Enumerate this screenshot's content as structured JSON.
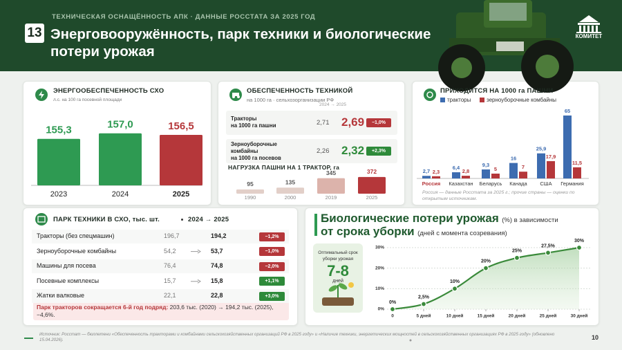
{
  "header": {
    "kicker": "ТЕХНИЧЕСКАЯ ОСНАЩЁННОСТЬ АПК · ДАННЫЕ РОССТАТА ЗА 2025 ГОД",
    "number": "13",
    "title": "Энерговооружённость, парк техники и биологические потери урожая",
    "logo": "КОМИТЕТ"
  },
  "chart_data": [
    {
      "type": "bar",
      "title": "ЭНЕРГООБЕСПЕЧЕННОСТЬ СХО",
      "subtitle": "л.с. на 100 га посевной площади",
      "categories": [
        "2023",
        "2024",
        "2025"
      ],
      "values": [
        155.3,
        157.0,
        156.5
      ],
      "value_labels": [
        "155,3",
        "157,0",
        "156,5"
      ],
      "colors": [
        "#2e9a52",
        "#2e9a52",
        "#b5373a"
      ],
      "ylim": [
        141,
        158
      ]
    },
    {
      "type": "bar",
      "title": "НАГРУЗКА ПАШНИ НА 1 ТРАКТОР, га",
      "categories": [
        "1990",
        "2000",
        "2019",
        "2025"
      ],
      "values": [
        95,
        135,
        345,
        372
      ],
      "colors": [
        "#e2cfc8",
        "#e2cfc8",
        "#dcb3ab",
        "#b5373a"
      ],
      "ylim": [
        0,
        400
      ]
    },
    {
      "type": "grouped_bar",
      "title": "ПРИХОДИТСЯ НА 1000 га ПАШНИ",
      "categories": [
        "Россия",
        "Казахстан",
        "Беларусь",
        "Канада",
        "США",
        "Германия"
      ],
      "series": [
        {
          "name": "тракторы",
          "color": "#3d6cb0",
          "values": [
            2.7,
            6.4,
            9.3,
            16,
            25.9,
            65
          ],
          "value_labels": [
            "2,7",
            "6,4",
            "9,3",
            "16",
            "25,9",
            "65"
          ]
        },
        {
          "name": "зерноуборочные комбайны",
          "color": "#b5373a",
          "values": [
            2.3,
            2.8,
            5,
            7,
            17.9,
            11.5
          ],
          "value_labels": [
            "2,3",
            "2,8",
            "5",
            "7",
            "17,9",
            "11,5"
          ]
        }
      ],
      "ylim": [
        0,
        65
      ],
      "note": "Россия — данные Росстата за 2025 г.; прочие страны — оценки по открытым источникам."
    },
    {
      "type": "line",
      "title": "Биологические потери урожая",
      "title_unit": "(%) в зависимости",
      "title_line2": "от срока уборки",
      "title_line2_unit": "(дней с момента созревания)",
      "x": [
        0,
        5,
        10,
        15,
        20,
        25,
        30
      ],
      "values": [
        0,
        2.5,
        10,
        20,
        25,
        27.5,
        30
      ],
      "value_labels": [
        "0%",
        "2,5%",
        "10%",
        "20%",
        "25%",
        "27,5%",
        "30%"
      ],
      "xlim": [
        0,
        30
      ],
      "xticks": [
        0,
        {
          "value": 5,
          "label": "5 дней"
        },
        {
          "value": 10,
          "label": "10 дней"
        },
        {
          "value": 15,
          "label": "15 дней"
        },
        {
          "value": 20,
          "label": "20 дней"
        },
        {
          "value": 25,
          "label": "25 дней"
        },
        {
          "value": 30,
          "label": "30 дней"
        }
      ],
      "ylim": [
        0,
        30
      ],
      "yticks": [
        {
          "value": 0,
          "label": "0%"
        },
        {
          "value": 10,
          "label": "10%"
        },
        {
          "value": 20,
          "label": "20%"
        },
        {
          "value": 30,
          "label": "30%"
        }
      ],
      "color": "#3a8a3a",
      "grid": true
    }
  ],
  "equipment": {
    "title": "ОБЕСПЕЧЕННОСТЬ ТЕХНИКОЙ",
    "subtitle": "на 1000 га · сельхозорганизации РФ",
    "period": "2024 → 2025",
    "rows": [
      {
        "label": "Тракторы\nна 1000 га пашни",
        "old": "2,71",
        "new": "2,69",
        "change": "−1,0%"
      },
      {
        "label": "Зерноуборочные\nкомбайны\nна 1000 га посевов",
        "old": "2,26",
        "new": "2,32",
        "change": "+2,3%"
      }
    ]
  },
  "fleet": {
    "title": "ПАРК ТЕХНИКИ В СХО, тыс. шт.",
    "period": "2024 → 2025",
    "rows": [
      [
        "Тракторы (без спецмашин)",
        "196,7",
        "194,2",
        "−1,2%"
      ],
      [
        "Зерноуборочные комбайны",
        "54,2",
        "53,7",
        "−1,0%"
      ],
      [
        "Машины для посева",
        "76,4",
        "74,8",
        "−2,0%"
      ],
      [
        "Посевные комплексы",
        "15,7",
        "15,8",
        "+1,1%"
      ],
      [
        "Жатки валковые",
        "22,1",
        "22,8",
        "+3,0%"
      ]
    ],
    "note_lead": "Парк тракторов сокращается 6-й год подряд:",
    "note": "203,6 тыс. (2020) → 194,2 тыс. (2025), −4,6%."
  },
  "optimal": {
    "title": "Оптимальный срок уборки урожая",
    "value": "7-8",
    "unit": "дней"
  },
  "footer": {
    "source": "Источник: Росстат — бюллетени «Обеспеченность тракторами и комбайнами сельскохозяйственных организаций РФ в 2025 году» и «Наличие техники, энергетических мощностей в сельскохозяйственных организациях РФ в 2025 году» (обновлено 15.04.2026).",
    "page": "10"
  }
}
